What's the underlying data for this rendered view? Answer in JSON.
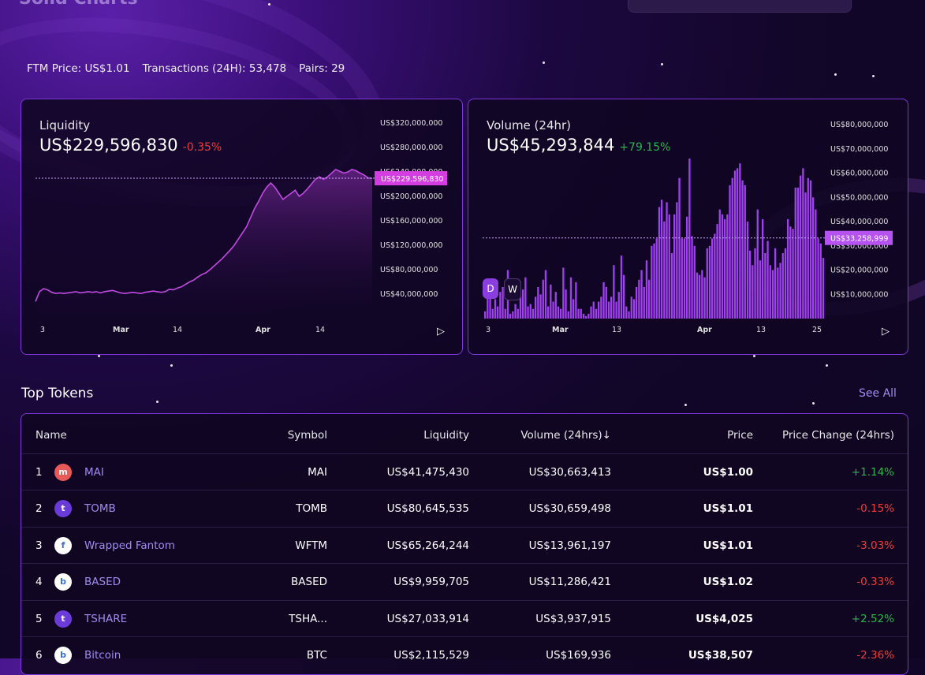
{
  "header": {
    "title": "Solid Charts"
  },
  "stats": {
    "ftm_price": "FTM Price: US$1.01",
    "transactions": "Transactions (24H): 53,478",
    "pairs": "Pairs: 29"
  },
  "liquidity_card": {
    "label": "Liquidity",
    "value": "US$229,596,830",
    "change": "-0.35%",
    "marker_label": "US$229,596,830",
    "y_ticks": [
      "US$320,000,000",
      "US$280,000,000",
      "US$240,000,000",
      "US$200,000,000",
      "US$160,000,000",
      "US$120,000,000",
      "US$80,000,000",
      "US$40,000,000"
    ],
    "x_ticks": [
      "3",
      "Mar",
      "14",
      "Apr",
      "14"
    ]
  },
  "volume_card": {
    "label": "Volume (24hr)",
    "value": "US$45,293,844",
    "change": "+79.15%",
    "marker_label": "US$33,258,999",
    "y_ticks": [
      "US$80,000,000",
      "US$70,000,000",
      "US$60,000,000",
      "US$50,000,000",
      "US$40,000,000",
      "US$30,000,000",
      "US$20,000,000",
      "US$10,000,000"
    ],
    "x_ticks": [
      "3",
      "Mar",
      "13",
      "Apr",
      "13",
      "25"
    ],
    "toggle_d": "D",
    "toggle_w": "W"
  },
  "chart_data": [
    {
      "type": "line",
      "ylabel": "",
      "ylim": [
        0,
        320000000
      ],
      "values": [
        28,
        44,
        49,
        47,
        43,
        41,
        42,
        41,
        42,
        43,
        44,
        42,
        43,
        44,
        43,
        44,
        42,
        44,
        45,
        46,
        44,
        42,
        41,
        42,
        43,
        42,
        41,
        43,
        44,
        45,
        44,
        43,
        44,
        48,
        47,
        50,
        52,
        56,
        60,
        63,
        68,
        72,
        75,
        80,
        86,
        92,
        98,
        105,
        112,
        120,
        130,
        140,
        150,
        165,
        180,
        192,
        205,
        215,
        222,
        215,
        205,
        195,
        200,
        205,
        210,
        200,
        205,
        212,
        220,
        228,
        232,
        228,
        232,
        238,
        244,
        241,
        238,
        240,
        244,
        242,
        238,
        235,
        230,
        229.6
      ]
    },
    {
      "type": "bar",
      "ylabel": "",
      "ylim": [
        0,
        80000000
      ],
      "values": [
        3,
        10,
        12,
        4,
        8,
        5,
        11,
        13,
        4,
        20,
        2,
        3,
        6,
        4,
        10,
        12,
        17,
        5,
        6,
        4,
        9,
        13,
        10,
        16,
        20,
        5,
        14,
        7,
        11,
        5,
        4,
        21,
        12,
        3,
        17,
        8,
        15,
        4,
        4,
        2,
        1,
        2,
        5,
        7,
        4,
        7,
        9,
        15,
        13,
        7,
        9,
        22,
        7,
        11,
        26,
        18,
        5,
        3,
        9,
        8,
        13,
        16,
        20,
        13,
        24,
        16,
        30,
        31,
        33,
        46,
        49,
        40,
        48,
        43,
        27,
        43,
        48,
        58,
        33,
        33,
        42,
        66,
        34,
        30,
        19,
        18,
        20,
        17,
        29,
        30,
        33,
        35,
        39,
        45,
        43,
        41,
        43,
        55,
        58,
        61,
        62,
        64,
        57,
        55,
        40,
        28,
        22,
        29,
        45,
        24,
        41,
        27,
        32,
        22,
        20,
        29,
        21,
        23,
        27,
        29,
        41,
        38,
        37,
        54,
        54,
        59,
        62,
        52,
        58,
        57,
        50,
        45,
        33,
        31,
        25
      ]
    }
  ],
  "top_tokens": {
    "title": "Top Tokens",
    "see_all": "See All",
    "columns": [
      "Name",
      "Symbol",
      "Liquidity",
      "Volume (24hrs)↓",
      "Price",
      "Price Change (24hrs)"
    ],
    "rows": [
      {
        "rank": "1",
        "name": "MAI",
        "symbol": "MAI",
        "liquidity": "US$41,475,430",
        "volume": "US$30,663,413",
        "price": "US$1.00",
        "change": "+1.14%",
        "dir": "pos",
        "logo_color": "#e85a5a",
        "logo_glyph": "m"
      },
      {
        "rank": "2",
        "name": "TOMB",
        "symbol": "TOMB",
        "liquidity": "US$80,645,535",
        "volume": "US$30,659,498",
        "price": "US$1.01",
        "change": "-0.15%",
        "dir": "neg",
        "logo_color": "#6a3bd8",
        "logo_glyph": "t"
      },
      {
        "rank": "3",
        "name": "Wrapped Fantom",
        "symbol": "WFTM",
        "liquidity": "US$65,264,244",
        "volume": "US$13,961,197",
        "price": "US$1.01",
        "change": "-3.03%",
        "dir": "neg",
        "logo_color": "#ffffff",
        "logo_glyph": "f"
      },
      {
        "rank": "4",
        "name": "BASED",
        "symbol": "BASED",
        "liquidity": "US$9,959,705",
        "volume": "US$11,286,421",
        "price": "US$1.02",
        "change": "-0.33%",
        "dir": "neg",
        "logo_color": "#ffffff",
        "logo_glyph": "b"
      },
      {
        "rank": "5",
        "name": "TSHARE",
        "symbol": "TSHA...",
        "liquidity": "US$27,033,914",
        "volume": "US$3,937,915",
        "price": "US$4,025",
        "change": "+2.52%",
        "dir": "pos",
        "logo_color": "#6a3bd8",
        "logo_glyph": "t"
      },
      {
        "rank": "6",
        "name": "Bitcoin",
        "symbol": "BTC",
        "liquidity": "US$2,115,529",
        "volume": "US$169,936",
        "price": "US$38,507",
        "change": "-2.36%",
        "dir": "neg",
        "logo_color": "#ffffff",
        "logo_glyph": "b"
      }
    ]
  }
}
